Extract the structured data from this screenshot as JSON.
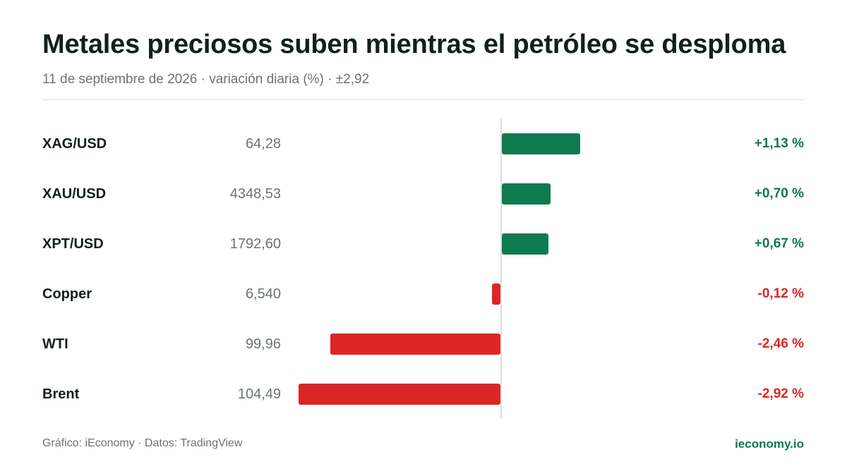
{
  "header": {
    "title": "Metales preciosos suben mientras el petróleo se desploma",
    "subtitle": "11 de septiembre de 2026 · variación diaria (%) · ±2,92"
  },
  "footer": {
    "credit": "Gráfico: iEconomy · Datos: TradingView",
    "site": "ieconomy.io"
  },
  "colors": {
    "positive": "#0e7a50",
    "negative": "#dc2626"
  },
  "chart_data": {
    "type": "bar",
    "orientation": "horizontal",
    "xlim": [
      -2.92,
      2.92
    ],
    "categories": [
      "XAG/USD",
      "XAU/USD",
      "XPT/USD",
      "Copper",
      "WTI",
      "Brent"
    ],
    "prices": [
      "64,28",
      "4348,53",
      "1792,60",
      "6,540",
      "99,96",
      "104,49"
    ],
    "values": [
      1.13,
      0.7,
      0.67,
      -0.12,
      -2.46,
      -2.92
    ],
    "value_labels": [
      "+1,13 %",
      "+0,70 %",
      "+0,67 %",
      "-0,12 %",
      "-2,46 %",
      "-2,92 %"
    ]
  }
}
